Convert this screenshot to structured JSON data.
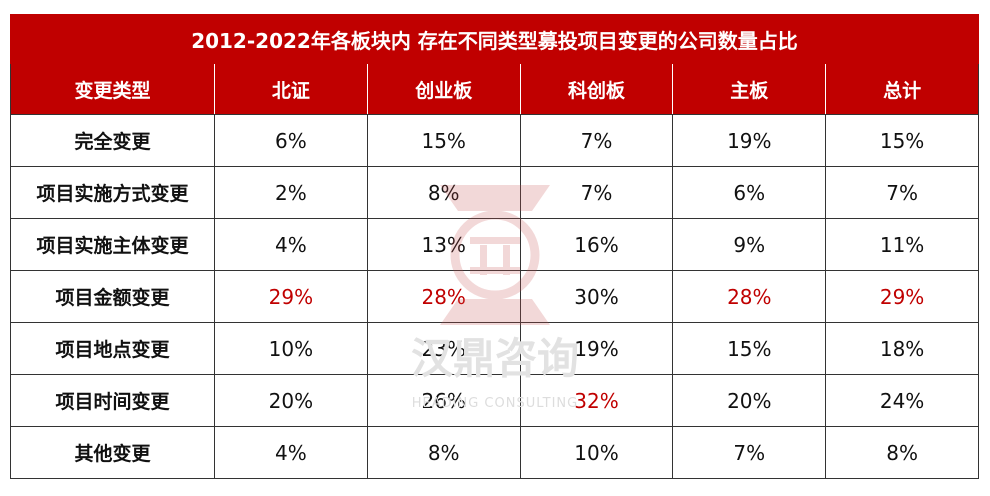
{
  "chart_data": {
    "type": "table",
    "title": "2012-2022年各板块内 存在不同类型募投项目变更的公司数量占比",
    "columns": [
      "变更类型",
      "北证",
      "创业板",
      "科创板",
      "主板",
      "总计"
    ],
    "rows": [
      {
        "label": "完全变更",
        "values": [
          "6%",
          "15%",
          "7%",
          "19%",
          "15%"
        ],
        "highlight": [
          false,
          false,
          false,
          false,
          false
        ]
      },
      {
        "label": "项目实施方式变更",
        "values": [
          "2%",
          "8%",
          "7%",
          "6%",
          "7%"
        ],
        "highlight": [
          false,
          false,
          false,
          false,
          false
        ]
      },
      {
        "label": "项目实施主体变更",
        "values": [
          "4%",
          "13%",
          "16%",
          "9%",
          "11%"
        ],
        "highlight": [
          false,
          false,
          false,
          false,
          false
        ]
      },
      {
        "label": "项目金额变更",
        "values": [
          "29%",
          "28%",
          "30%",
          "28%",
          "29%"
        ],
        "highlight": [
          true,
          true,
          false,
          true,
          true
        ]
      },
      {
        "label": "项目地点变更",
        "values": [
          "10%",
          "23%",
          "19%",
          "15%",
          "18%"
        ],
        "highlight": [
          false,
          false,
          false,
          false,
          false
        ]
      },
      {
        "label": "项目时间变更",
        "values": [
          "20%",
          "26%",
          "32%",
          "20%",
          "24%"
        ],
        "highlight": [
          false,
          false,
          true,
          false,
          false
        ]
      },
      {
        "label": "其他变更",
        "values": [
          "4%",
          "8%",
          "10%",
          "7%",
          "8%"
        ],
        "highlight": [
          false,
          false,
          false,
          false,
          false
        ]
      }
    ]
  },
  "watermark": {
    "text_cn": "汉鼎咨询",
    "text_en": "HEADING CONSULTING"
  },
  "colors": {
    "header_bg": "#c00000",
    "highlight_text": "#c00000",
    "watermark": "#d9d9d9"
  }
}
